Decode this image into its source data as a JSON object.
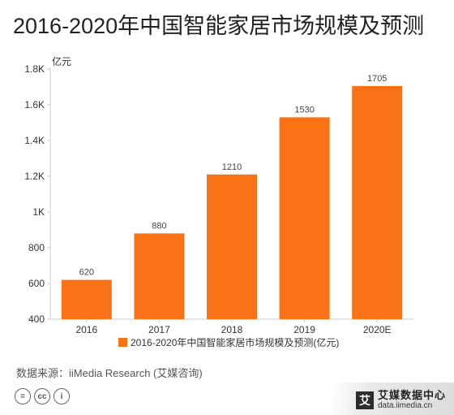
{
  "page_title": "2016-2020年中国智能家居市场规模及预测",
  "source_text": "数据来源：iiMedia Research (艾媒咨询)",
  "footer_icons": [
    "=",
    "cc",
    "i"
  ],
  "brand": {
    "mark": "艾",
    "name": "艾媒数据中心",
    "url": "data.iimedia.cn"
  },
  "colors": {
    "bar": "#f97316",
    "axis": "#cccccc",
    "text": "#333333"
  },
  "chart_data": {
    "type": "bar",
    "title": "2016-2020年中国智能家居市场规模及预测",
    "categories": [
      "2016",
      "2017",
      "2018",
      "2019",
      "2020E"
    ],
    "series": [
      {
        "name": "2016-2020年中国智能家居市场规模及预测(亿元)",
        "values": [
          620,
          880,
          1210,
          1530,
          1705
        ]
      }
    ],
    "data_labels": [
      "620",
      "880",
      "1210",
      "1530",
      "1705"
    ],
    "ylabel": "亿元",
    "ylim": [
      400,
      1800
    ],
    "yticks": [
      400,
      600,
      800,
      1000,
      1200,
      1400,
      1600,
      1800
    ],
    "ytick_labels": [
      "400",
      "600",
      "800",
      "1K",
      "1.2K",
      "1.4K",
      "1.6K",
      "1.8K"
    ],
    "grid": false,
    "legend_position": "bottom"
  }
}
